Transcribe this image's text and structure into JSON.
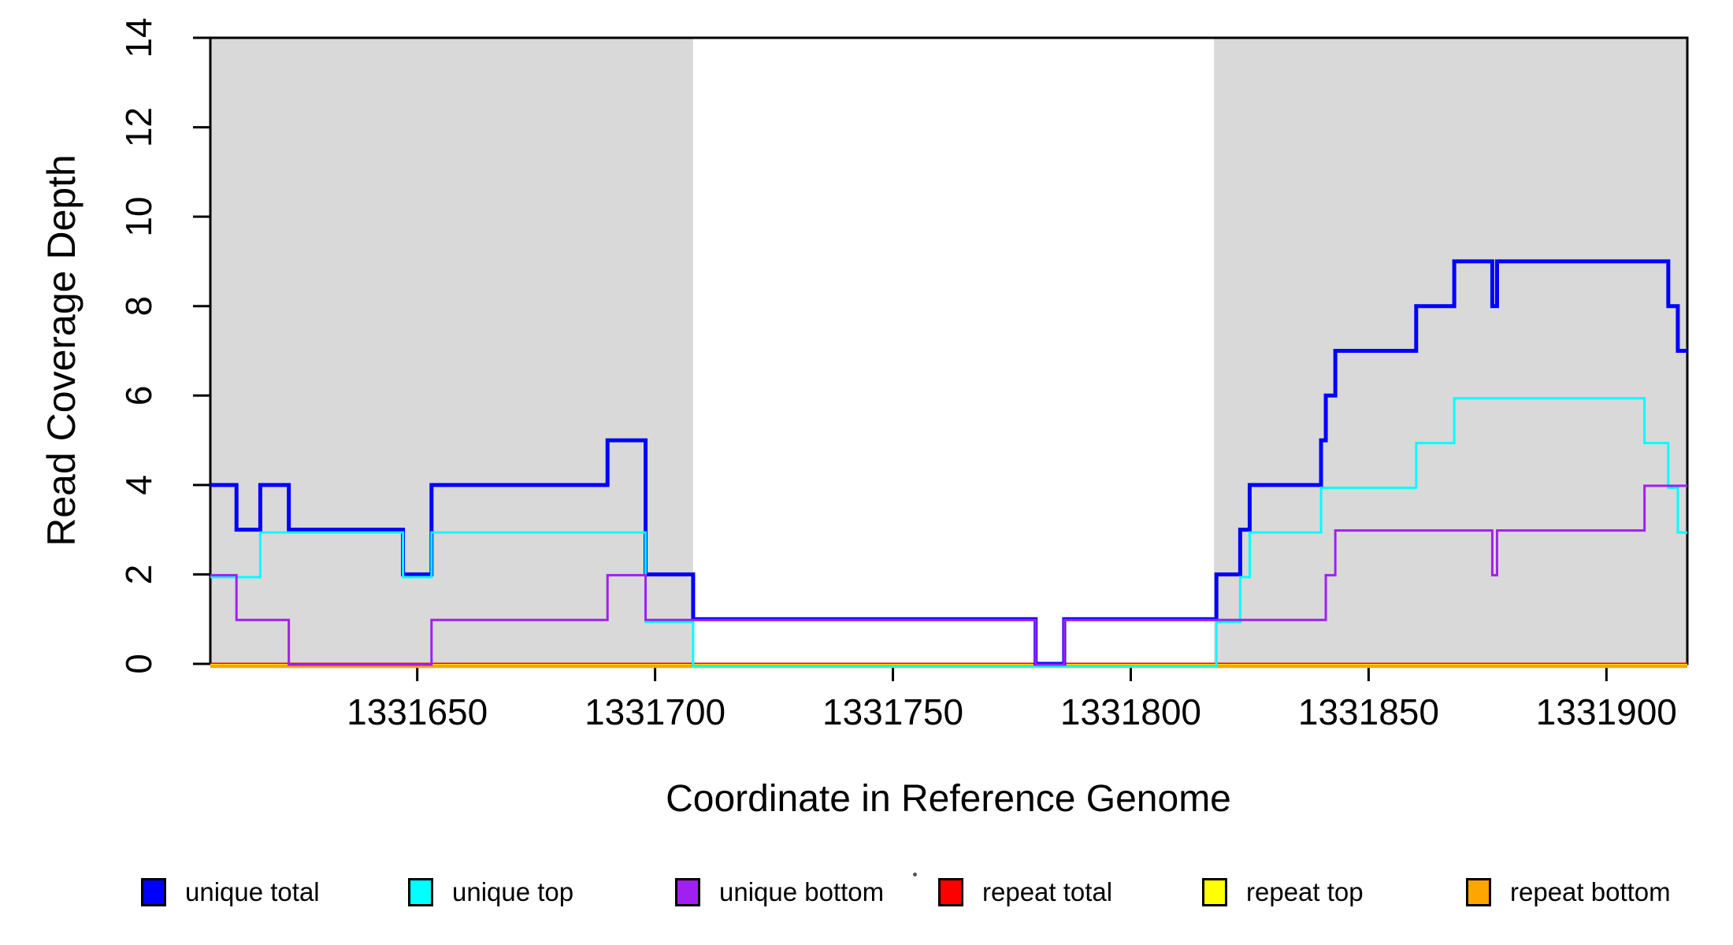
{
  "chart_data": {
    "type": "line",
    "subtype": "step-coverage-plot",
    "title": "",
    "xlabel": "Coordinate in Reference Genome",
    "ylabel": "Read Coverage Depth",
    "xlim": [
      1331606.5,
      1331917
    ],
    "ylim": [
      0,
      14
    ],
    "x_ticks": [
      1331650,
      1331700,
      1331750,
      1331800,
      1331850,
      1331900
    ],
    "y_ticks": [
      0,
      2,
      4,
      6,
      8,
      10,
      12,
      14
    ],
    "grid": "off",
    "background_color": "#ffffff",
    "shaded_region_color": "#d9d9d9",
    "shaded_regions": [
      {
        "x0": 1331606.5,
        "x1": 1331708
      },
      {
        "x0": 1331817.5,
        "x1": 1331917
      }
    ],
    "series": [
      {
        "name": "repeat total",
        "color": "#ff0000",
        "steps": [
          [
            1331606.5,
            0
          ]
        ]
      },
      {
        "name": "repeat top",
        "color": "#ffff00",
        "steps": [
          [
            1331606.5,
            0
          ]
        ]
      },
      {
        "name": "repeat bottom",
        "color": "#ffa500",
        "steps": [
          [
            1331606.5,
            0
          ]
        ]
      },
      {
        "name": "unique total",
        "color": "#0000ff",
        "steps": [
          [
            1331606.5,
            4
          ],
          [
            1331612,
            3
          ],
          [
            1331617,
            4
          ],
          [
            1331623,
            3
          ],
          [
            1331647,
            2
          ],
          [
            1331653,
            4
          ],
          [
            1331690,
            5
          ],
          [
            1331698,
            2
          ],
          [
            1331708,
            1
          ],
          [
            1331780,
            0
          ],
          [
            1331786,
            1
          ],
          [
            1331818,
            2
          ],
          [
            1331823,
            3
          ],
          [
            1331825,
            4
          ],
          [
            1331840,
            5
          ],
          [
            1331841,
            6
          ],
          [
            1331843,
            7
          ],
          [
            1331860,
            8
          ],
          [
            1331868,
            9
          ],
          [
            1331876,
            8
          ],
          [
            1331877,
            9
          ],
          [
            1331913,
            8
          ],
          [
            1331915,
            7
          ]
        ]
      },
      {
        "name": "unique top",
        "color": "#00ffff",
        "steps": [
          [
            1331606.5,
            2
          ],
          [
            1331617,
            3
          ],
          [
            1331647,
            2
          ],
          [
            1331653,
            3
          ],
          [
            1331698,
            1
          ],
          [
            1331708,
            0
          ],
          [
            1331818,
            1
          ],
          [
            1331823,
            2
          ],
          [
            1331825,
            3
          ],
          [
            1331840,
            4
          ],
          [
            1331860,
            5
          ],
          [
            1331868,
            6
          ],
          [
            1331908,
            5
          ],
          [
            1331913,
            4
          ],
          [
            1331915,
            3
          ]
        ]
      },
      {
        "name": "unique bottom",
        "color": "#a020f0",
        "steps": [
          [
            1331606.5,
            2
          ],
          [
            1331612,
            1
          ],
          [
            1331623,
            0
          ],
          [
            1331653,
            1
          ],
          [
            1331690,
            2
          ],
          [
            1331698,
            1
          ],
          [
            1331780,
            0
          ],
          [
            1331786,
            1
          ],
          [
            1331841,
            2
          ],
          [
            1331843,
            3
          ],
          [
            1331876,
            2
          ],
          [
            1331877,
            3
          ],
          [
            1331908,
            4
          ]
        ]
      }
    ],
    "legend": [
      {
        "label": "unique total",
        "color": "#0000ff"
      },
      {
        "label": "unique top",
        "color": "#00ffff"
      },
      {
        "label": "unique bottom",
        "color": "#a020f0"
      },
      {
        "label": "repeat total",
        "color": "#ff0000"
      },
      {
        "label": "repeat top",
        "color": "#ffff00"
      },
      {
        "label": "repeat bottom",
        "color": "#ffa500"
      }
    ],
    "legend_position": "bottom"
  }
}
